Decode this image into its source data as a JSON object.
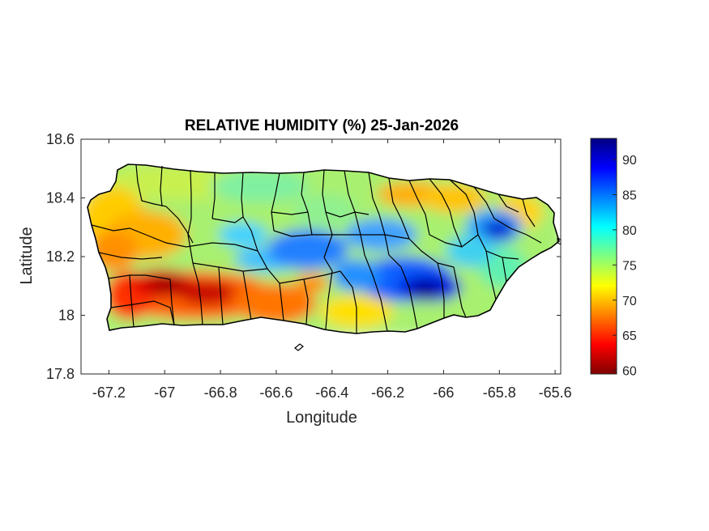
{
  "title": "RELATIVE HUMIDITY (%) 25-Jan-2026",
  "xlabel": "Longitude",
  "ylabel": "Latitude",
  "x_ticks": [
    "-67.2",
    "-67",
    "-66.8",
    "-66.6",
    "-66.4",
    "-66.2",
    "-66",
    "-65.8",
    "-65.6"
  ],
  "y_ticks": [
    "18.6",
    "18.4",
    "18.2",
    "18"
  ],
  "y_ticks_bottom": "17.8",
  "colorbar": {
    "ticks": [
      "90",
      "85",
      "80",
      "75",
      "70",
      "65",
      "60"
    ],
    "range": [
      59.5,
      93
    ],
    "colormap": "jet"
  },
  "chart_data": {
    "type": "heatmap",
    "title": "RELATIVE HUMIDITY (%) 25-Jan-2026",
    "xlabel": "Longitude",
    "ylabel": "Latitude",
    "xlim": [
      -67.3,
      -65.58
    ],
    "ylim": [
      17.8,
      18.6
    ],
    "x_ticks": [
      -67.2,
      -67,
      -66.8,
      -66.6,
      -66.4,
      -66.2,
      -66,
      -65.8,
      -65.6
    ],
    "y_ticks": [
      17.8,
      18,
      18.2,
      18.4,
      18.6
    ],
    "colorbar_range": [
      59.5,
      93
    ],
    "colorbar_ticks": [
      60,
      65,
      70,
      75,
      80,
      85,
      90
    ],
    "region": "Puerto Rico",
    "humidity_features": [
      {
        "lon": -66.95,
        "lat": 18.1,
        "value": 60
      },
      {
        "lon": -66.8,
        "lat": 18.07,
        "value": 62
      },
      {
        "lon": -67.1,
        "lat": 18.05,
        "value": 64
      },
      {
        "lon": -66.55,
        "lat": 18.05,
        "value": 66
      },
      {
        "lon": -67.1,
        "lat": 18.28,
        "value": 68
      },
      {
        "lon": -66.15,
        "lat": 18.41,
        "value": 69
      },
      {
        "lon": -66.0,
        "lat": 18.4,
        "value": 70
      },
      {
        "lon": -66.05,
        "lat": 18.08,
        "value": 92
      },
      {
        "lon": -65.8,
        "lat": 18.29,
        "value": 92
      },
      {
        "lon": -66.2,
        "lat": 18.12,
        "value": 88
      },
      {
        "lon": -66.5,
        "lat": 18.2,
        "value": 85
      },
      {
        "lon": -66.3,
        "lat": 18.28,
        "value": 84
      },
      {
        "lon": -65.75,
        "lat": 18.2,
        "value": 78
      },
      {
        "lon": -66.75,
        "lat": 18.22,
        "value": 80
      }
    ]
  }
}
